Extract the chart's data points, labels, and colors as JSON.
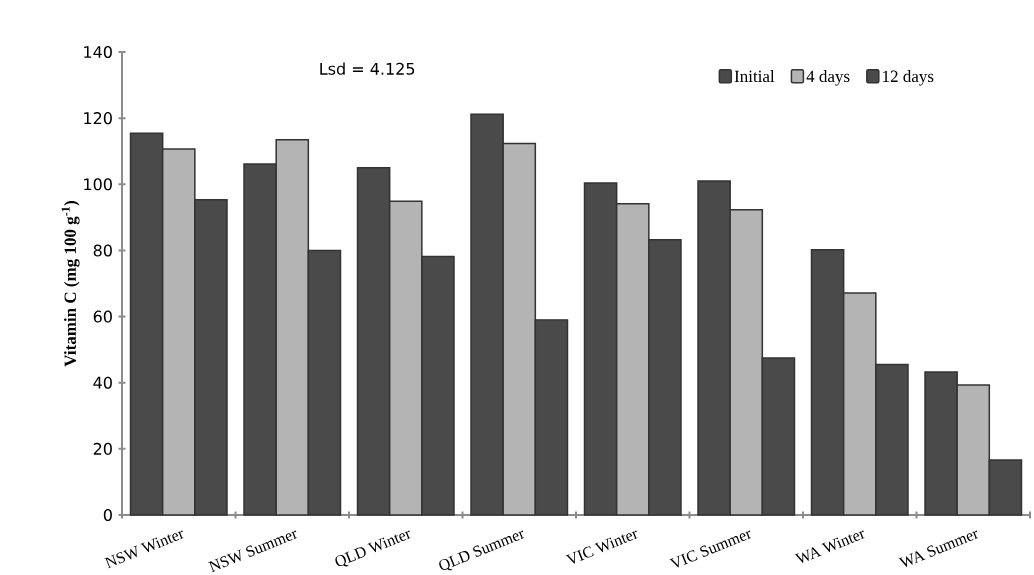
{
  "chart_data": {
    "type": "bar",
    "ylabel": "Vitamin C (mg 100 g$^{-1}$)",
    "categories": [
      "NSW Winter",
      "NSW Summer",
      "QLD Winter",
      "QLD Summer",
      "VIC Winter",
      "VIC Summer",
      "WA Winter",
      "WA Summer"
    ],
    "series": [
      {
        "name": "Initial",
        "color": "#4a4a4a",
        "values": [
          115.4,
          106.1,
          105.0,
          121.2,
          100.4,
          101.0,
          80.2,
          43.2
        ]
      },
      {
        "name": "4 days",
        "color": "#b4b4b4",
        "values": [
          110.7,
          113.5,
          94.9,
          112.3,
          94.1,
          92.3,
          67.1,
          39.3
        ]
      },
      {
        "name": "12 days",
        "color": "#4a4a4a",
        "values": [
          95.3,
          80.0,
          78.2,
          59.0,
          83.2,
          47.5,
          45.5,
          16.6
        ]
      }
    ],
    "ylim": [
      0,
      140
    ],
    "yticks": [
      0,
      20,
      40,
      60,
      80,
      100,
      120,
      140
    ],
    "legend": "top right",
    "annotations": [
      "Lsd = 4.125"
    ]
  }
}
